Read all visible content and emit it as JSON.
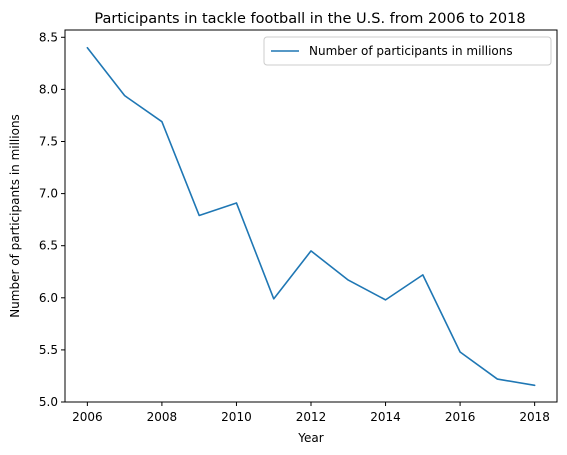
{
  "chart_data": {
    "type": "line",
    "title": "Participants in tackle football in the U.S. from 2006 to 2018",
    "xlabel": "Year",
    "ylabel": "Number of participants in millions",
    "x": [
      2006,
      2007,
      2008,
      2009,
      2010,
      2011,
      2012,
      2013,
      2014,
      2015,
      2016,
      2017,
      2018
    ],
    "series": [
      {
        "name": "Number of participants in millions",
        "color": "#1f77b4",
        "values": [
          8.4,
          7.94,
          7.69,
          6.79,
          6.91,
          5.99,
          6.45,
          6.17,
          5.98,
          6.22,
          5.48,
          5.22,
          5.16
        ]
      }
    ],
    "xlim": [
      2005.4,
      2018.6
    ],
    "ylim": [
      5.0,
      8.57
    ],
    "xticks": [
      "2006",
      "2008",
      "2010",
      "2012",
      "2014",
      "2016",
      "2018"
    ],
    "yticks": [
      "5.0",
      "5.5",
      "6.0",
      "6.5",
      "7.0",
      "7.5",
      "8.0",
      "8.5"
    ],
    "grid": false,
    "legend_position": "top-right"
  }
}
